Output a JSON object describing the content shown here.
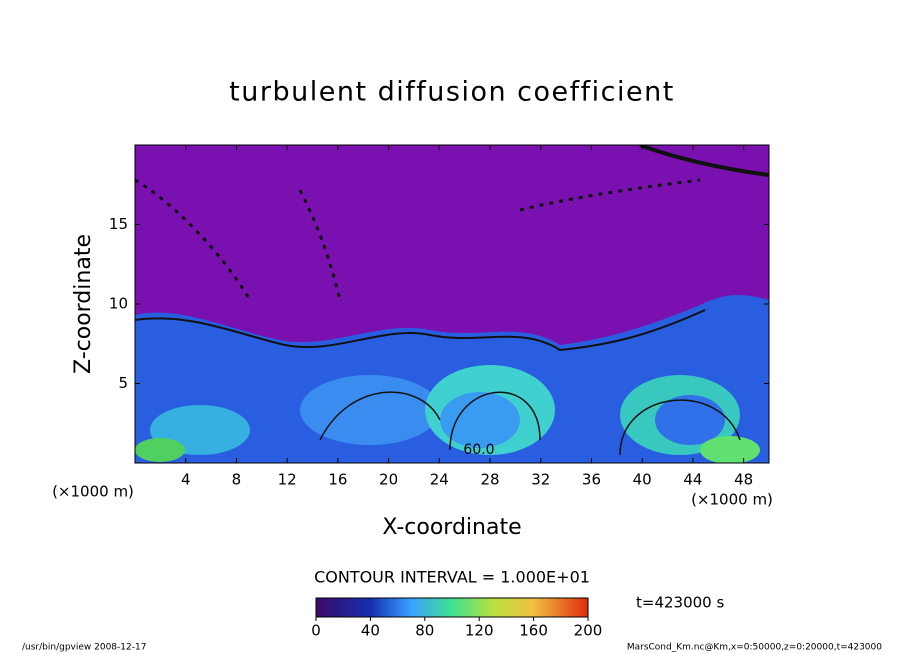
{
  "chart_data": {
    "type": "contour",
    "title": "turbulent diffusion coefficient",
    "x_label": "X-coordinate",
    "y_label": "Z-coordinate",
    "x_unit": "(×1000 m)",
    "y_unit": "(×1000 m)",
    "xlim": [
      0,
      50
    ],
    "xticks": [
      4,
      8,
      12,
      16,
      20,
      24,
      28,
      32,
      36,
      40,
      44,
      48
    ],
    "ylim": [
      0,
      20
    ],
    "yticks": [
      5,
      10,
      15
    ],
    "contour_label": "60.0",
    "contour_interval": "CONTOUR INTERVAL = 1.000E+01",
    "colorbar": {
      "lim": [
        0,
        200
      ],
      "ticks": [
        0,
        40,
        80,
        120,
        160,
        200
      ]
    },
    "time_label": "t=423000 s",
    "footer_left": "/usr/bin/gpview   2008-12-17",
    "footer_right": "MarsCond_Km.nc@Km,x=0:50000,z=0:20000,t=423000"
  }
}
